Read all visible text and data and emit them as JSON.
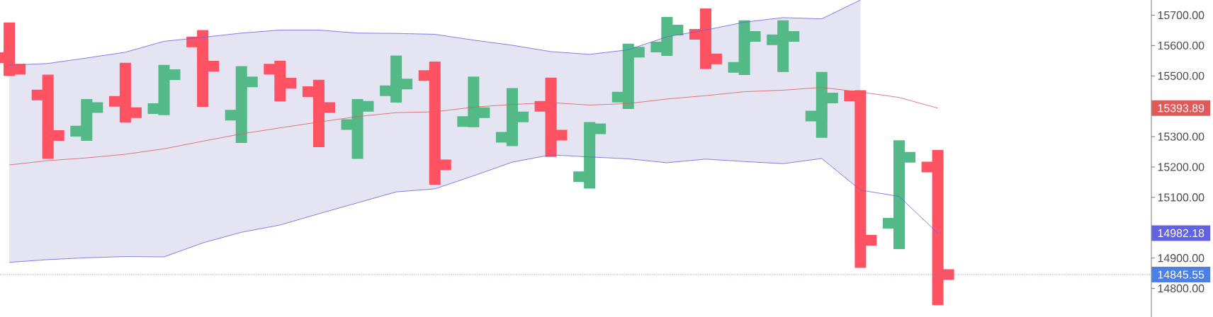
{
  "chart_data": {
    "type": "candlestick",
    "categories": [
      null,
      null,
      null,
      null,
      null,
      null,
      null,
      null,
      null,
      null,
      null,
      null,
      null,
      null,
      null,
      null,
      null,
      null,
      null,
      null,
      null,
      null,
      null,
      null,
      null
    ],
    "ohlc": [
      [
        15560,
        15676,
        15500,
        15522
      ],
      [
        15437,
        15504,
        15227,
        15304
      ],
      [
        15318,
        15424,
        15286,
        15396
      ],
      [
        15416,
        15543,
        15347,
        15379
      ],
      [
        15392,
        15536,
        15371,
        15504
      ],
      [
        15612,
        15651,
        15398,
        15532
      ],
      [
        15371,
        15532,
        15279,
        15480
      ],
      [
        15522,
        15550,
        15416,
        15476
      ],
      [
        15448,
        15487,
        15265,
        15396
      ],
      [
        15340,
        15424,
        15227,
        15400
      ],
      [
        15451,
        15567,
        15412,
        15473
      ],
      [
        15501,
        15547,
        15142,
        15207
      ],
      [
        15350,
        15498,
        15331,
        15379
      ],
      [
        15298,
        15460,
        15269,
        15365
      ],
      [
        15400,
        15494,
        15233,
        15305
      ],
      [
        15168,
        15348,
        15129,
        15326
      ],
      [
        15430,
        15606,
        15391,
        15578
      ],
      [
        15595,
        15694,
        15566,
        15651
      ],
      [
        15637,
        15722,
        15523,
        15556
      ],
      [
        15528,
        15683,
        15503,
        15630
      ],
      [
        15619,
        15683,
        15513,
        15630
      ],
      [
        15368,
        15513,
        15296,
        15427
      ],
      [
        15434,
        15453,
        14868,
        14959
      ],
      [
        15015,
        15288,
        14930,
        15232
      ],
      [
        15200,
        15256,
        14745,
        14845.55
      ]
    ],
    "colors": [
      "#ff5263",
      "#ff5263",
      "#53b987",
      "#ff5263",
      "#53b987",
      "#ff5263",
      "#53b987",
      "#ff5263",
      "#ff5263",
      "#53b987",
      "#53b987",
      "#ff5263",
      "#53b987",
      "#53b987",
      "#ff5263",
      "#53b987",
      "#53b987",
      "#53b987",
      "#ff5263",
      "#53b987",
      "#53b987",
      "#53b987",
      "#ff5263",
      "#53b987",
      "#ff5263"
    ],
    "series": [
      {
        "type": "line",
        "color": "#e05a5a",
        "values": [
          15207,
          15221,
          15230,
          15242,
          15260,
          15285,
          15309,
          15329,
          15348,
          15366,
          15379,
          15382,
          15397,
          15406,
          15412,
          15404,
          15409,
          15424,
          15435,
          15448,
          15453,
          15462,
          15447,
          15429,
          15393.89
        ],
        "lower": [
          14886,
          14895,
          14901,
          14905,
          14904,
          14950,
          14985,
          15009,
          15046,
          15082,
          15118,
          15128,
          15171,
          15216,
          15240,
          15233,
          15227,
          15214,
          15226,
          15218,
          15211,
          15228,
          15124,
          null,
          null
        ],
        "upper": [
          15535,
          15541,
          15559,
          15578,
          15614,
          15627,
          15641,
          15651,
          15651,
          15641,
          15640,
          15637,
          15618,
          15601,
          15580,
          15571,
          15586,
          15629,
          15651,
          15677,
          15692,
          15688,
          15750,
          null,
          null
        ]
      },
      {
        "type": "line",
        "color": "#6262e4",
        "values": [
          15535,
          15541,
          15559,
          15578,
          15614,
          15627,
          15641,
          15651,
          15651,
          15641,
          15640,
          15637,
          15618,
          15601,
          15580,
          15571,
          15586,
          15629,
          15651,
          15677,
          15692,
          15688,
          15750,
          null,
          null
        ]
      },
      {
        "type": "line",
        "color": "#6262e4",
        "values": [
          14886,
          14895,
          14901,
          14905,
          14904,
          14950,
          14985,
          15009,
          15046,
          15082,
          15118,
          15128,
          15171,
          15216,
          15240,
          15233,
          15227,
          15214,
          15226,
          15218,
          15211,
          15228,
          15124,
          15103,
          14982.18
        ]
      }
    ],
    "ylim": [
      14706,
      15750
    ],
    "yticks": [
      {
        "value": 14800,
        "label": "14800.00"
      },
      {
        "value": 14900,
        "label": "14900.00"
      },
      {
        "value": 15100,
        "label": "15100.00"
      },
      {
        "value": 15200,
        "label": "15200.00"
      },
      {
        "value": 15300,
        "label": "15300.00"
      },
      {
        "value": 15500,
        "label": "15500.00"
      },
      {
        "value": 15600,
        "label": "15600.00"
      },
      {
        "value": 15700,
        "label": "15700.00"
      }
    ],
    "tick_labels": "y",
    "ref_lines": [
      {
        "axis": "y",
        "value": 14845.55,
        "label": "14845.55",
        "color": "#4d80e6",
        "line_style": "dotted"
      }
    ],
    "annotations": [
      "15393.89",
      "14982.18"
    ]
  }
}
